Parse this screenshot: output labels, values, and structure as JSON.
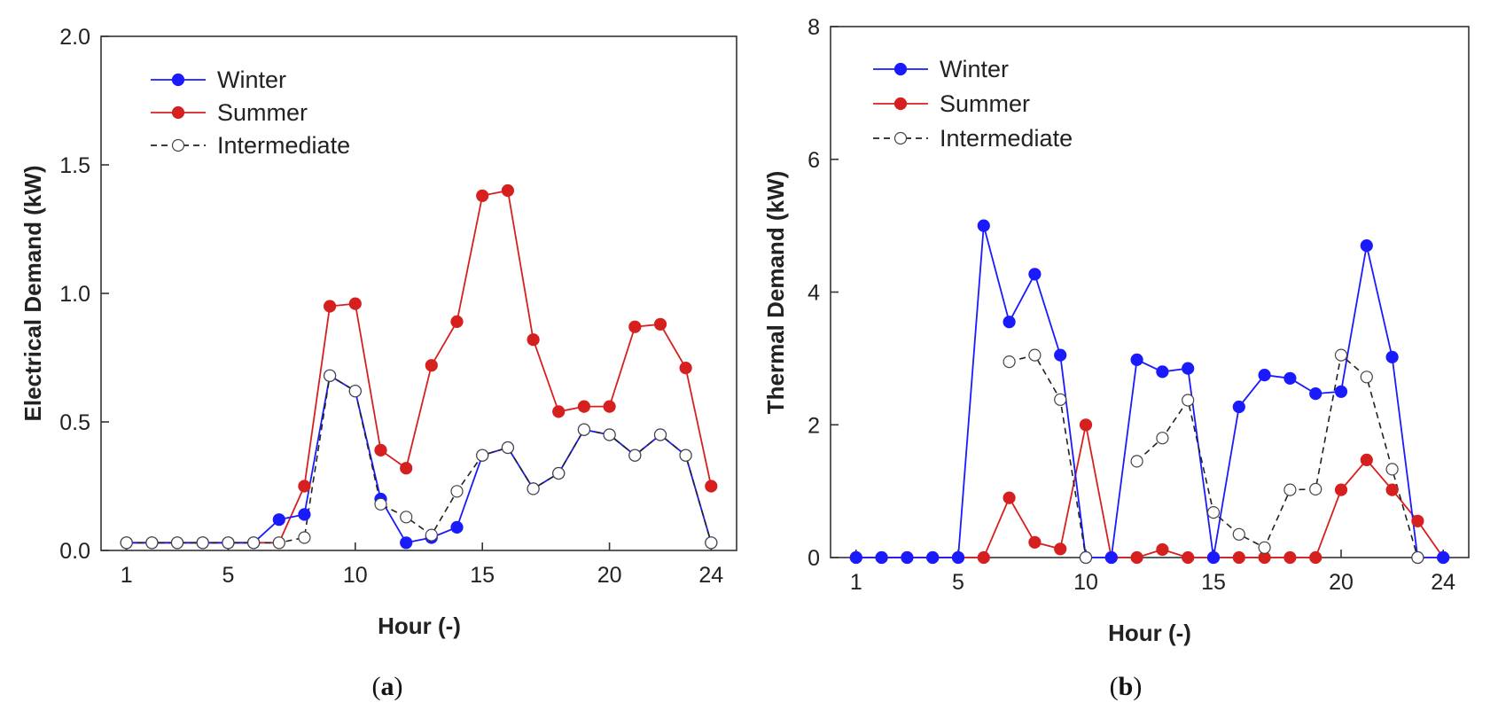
{
  "chart_data": [
    {
      "type": "line",
      "panel_label": "a",
      "caption_open": "(",
      "caption_close": ")",
      "xlabel": "Hour (-)",
      "ylabel": "Electrical Demand (kW)",
      "xlim": [
        0,
        25
      ],
      "ylim": [
        0,
        2.0
      ],
      "xticks": [
        1,
        5,
        10,
        15,
        20,
        24
      ],
      "yticks": [
        0.0,
        0.5,
        1.0,
        1.5,
        2.0
      ],
      "ytick_labels": [
        "0.0",
        "0.5",
        "1.0",
        "1.5",
        "2.0"
      ],
      "legend_position": "top-left",
      "x": [
        1,
        2,
        3,
        4,
        5,
        6,
        7,
        8,
        9,
        10,
        11,
        12,
        13,
        14,
        15,
        16,
        17,
        18,
        19,
        20,
        21,
        22,
        23,
        24
      ],
      "series": [
        {
          "name": "Winter",
          "color": "#1a1aff",
          "style": "solid",
          "marker": "filled",
          "values": [
            0.03,
            0.03,
            0.03,
            0.03,
            0.03,
            0.03,
            0.12,
            0.14,
            0.68,
            0.62,
            0.2,
            0.03,
            0.05,
            0.09,
            0.37,
            0.4,
            0.24,
            0.3,
            0.47,
            0.45,
            0.37,
            0.45,
            0.37,
            0.03
          ]
        },
        {
          "name": "Summer",
          "color": "#d62020",
          "style": "solid",
          "marker": "filled",
          "values": [
            0.03,
            0.03,
            0.03,
            0.03,
            0.03,
            0.03,
            0.03,
            0.25,
            0.95,
            0.96,
            0.39,
            0.32,
            0.72,
            0.89,
            1.38,
            1.4,
            0.82,
            0.54,
            0.56,
            0.56,
            0.87,
            0.88,
            0.71,
            0.25
          ]
        },
        {
          "name": "Intermediate",
          "color": "#222222",
          "style": "dashed",
          "marker": "open",
          "values": [
            0.03,
            0.03,
            0.03,
            0.03,
            0.03,
            0.03,
            0.03,
            0.05,
            0.68,
            0.62,
            0.18,
            0.13,
            0.06,
            0.23,
            0.37,
            0.4,
            0.24,
            0.3,
            0.47,
            0.45,
            0.37,
            0.45,
            0.37,
            0.03
          ]
        }
      ]
    },
    {
      "type": "line",
      "panel_label": "b",
      "caption_open": "(",
      "caption_close": ")",
      "xlabel": "Hour (-)",
      "ylabel": "Thermal Demand (kW)",
      "xlim": [
        0,
        25
      ],
      "ylim": [
        0,
        8
      ],
      "xticks": [
        1,
        5,
        10,
        15,
        20,
        24
      ],
      "yticks": [
        0,
        2,
        4,
        6,
        8
      ],
      "ytick_labels": [
        "0",
        "2",
        "4",
        "6",
        "8"
      ],
      "legend_position": "top-left",
      "x": [
        1,
        2,
        3,
        4,
        5,
        6,
        7,
        8,
        9,
        10,
        11,
        12,
        13,
        14,
        15,
        16,
        17,
        18,
        19,
        20,
        21,
        22,
        23,
        24
      ],
      "series": [
        {
          "name": "Winter",
          "color": "#1a1aff",
          "style": "solid",
          "marker": "filled",
          "values": [
            0,
            0,
            0,
            0,
            0,
            5.0,
            3.55,
            4.27,
            3.05,
            0,
            0,
            2.98,
            2.8,
            2.85,
            0,
            2.27,
            2.75,
            2.7,
            2.47,
            2.5,
            4.7,
            3.02,
            0,
            0
          ]
        },
        {
          "name": "Summer",
          "color": "#d62020",
          "style": "solid",
          "marker": "filled",
          "values": [
            0,
            0,
            0,
            0,
            0,
            0,
            0.9,
            0.23,
            0.13,
            2.0,
            0,
            0,
            0.12,
            0,
            0,
            0,
            0,
            0,
            0,
            1.02,
            1.47,
            1.02,
            0.55,
            0
          ]
        },
        {
          "name": "Intermediate",
          "color": "#222222",
          "style": "dashed",
          "marker": "open",
          "values": [
            null,
            null,
            null,
            null,
            null,
            null,
            2.95,
            3.05,
            2.38,
            0,
            null,
            1.45,
            1.8,
            2.37,
            0.68,
            0.35,
            0.15,
            1.02,
            1.03,
            3.05,
            2.72,
            1.33,
            0,
            null
          ]
        }
      ]
    }
  ]
}
